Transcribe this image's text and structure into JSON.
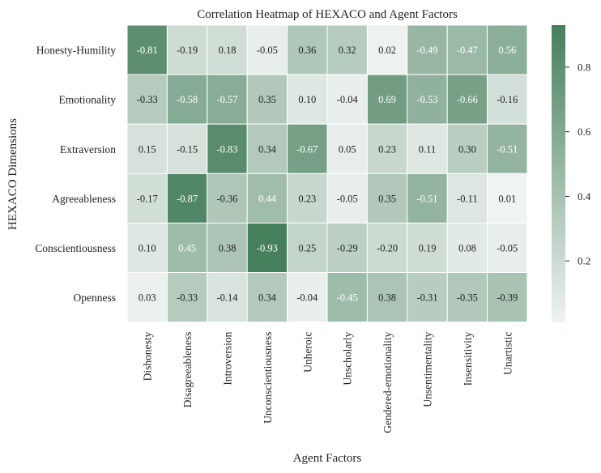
{
  "chart_data": {
    "type": "heatmap",
    "title": "Correlation Heatmap of HEXACO and Agent Factors",
    "xlabel": "Agent Factors",
    "ylabel": "HEXACO Dimensions",
    "columns": [
      "Dishonesty",
      "Disagreeableness",
      "Introversion",
      "Unconscientiousness",
      "Unheroic",
      "Unscholarly",
      "Gendered-emotionality",
      "Unsentimentality",
      "Insensitivity",
      "Unartistic"
    ],
    "rows": [
      "Honesty-Humility",
      "Emotionality",
      "Extraversion",
      "Agreeableness",
      "Conscientiousness",
      "Openness"
    ],
    "values": [
      [
        -0.81,
        -0.19,
        0.18,
        -0.05,
        0.36,
        0.32,
        0.02,
        -0.49,
        -0.47,
        0.56
      ],
      [
        -0.33,
        -0.58,
        -0.57,
        0.35,
        0.1,
        -0.04,
        0.69,
        -0.53,
        -0.66,
        -0.16
      ],
      [
        0.15,
        -0.15,
        -0.83,
        0.34,
        -0.67,
        0.05,
        0.23,
        0.11,
        0.3,
        -0.51
      ],
      [
        -0.17,
        -0.87,
        -0.36,
        0.44,
        0.23,
        -0.05,
        0.35,
        -0.51,
        -0.11,
        0.01
      ],
      [
        0.1,
        0.45,
        0.38,
        -0.93,
        0.25,
        -0.29,
        -0.2,
        0.19,
        0.08,
        -0.05
      ],
      [
        0.03,
        -0.33,
        -0.14,
        0.34,
        -0.04,
        -0.45,
        0.38,
        -0.31,
        -0.35,
        -0.39
      ]
    ],
    "value_labels": [
      [
        "-0.81",
        "-0.19",
        "0.18",
        "-0.05",
        "0.36",
        "0.32",
        "0.02",
        "-0.49",
        "-0.47",
        "0.56"
      ],
      [
        "-0.33",
        "-0.58",
        "-0.57",
        "0.35",
        "0.10",
        "-0.04",
        "0.69",
        "-0.53",
        "-0.66",
        "-0.16"
      ],
      [
        "0.15",
        "-0.15",
        "-0.83",
        "0.34",
        "-0.67",
        "0.05",
        "0.23",
        "0.11",
        "0.30",
        "-0.51"
      ],
      [
        "-0.17",
        "-0.87",
        "-0.36",
        "0.44",
        "0.23",
        "-0.05",
        "0.35",
        "-0.51",
        "-0.11",
        "0.01"
      ],
      [
        "0.10",
        "0.45",
        "0.38",
        "-0.93",
        "0.25",
        "-0.29",
        "-0.20",
        "0.19",
        "0.08",
        "-0.05"
      ],
      [
        "0.03",
        "-0.33",
        "-0.14",
        "0.34",
        "-0.04",
        "-0.45",
        "0.38",
        "-0.31",
        "-0.35",
        "-0.39"
      ]
    ],
    "color_by": "absolute value",
    "colorbar": {
      "min": 0.01,
      "max": 0.93,
      "ticks": [
        "0.2",
        "0.4",
        "0.6",
        "0.8"
      ],
      "tick_values": [
        0.2,
        0.4,
        0.6,
        0.8
      ]
    },
    "colors": {
      "low": "#eff3f1",
      "high": "#467f5c",
      "light_text": "#ffffff",
      "dark_text": "#222222"
    }
  }
}
